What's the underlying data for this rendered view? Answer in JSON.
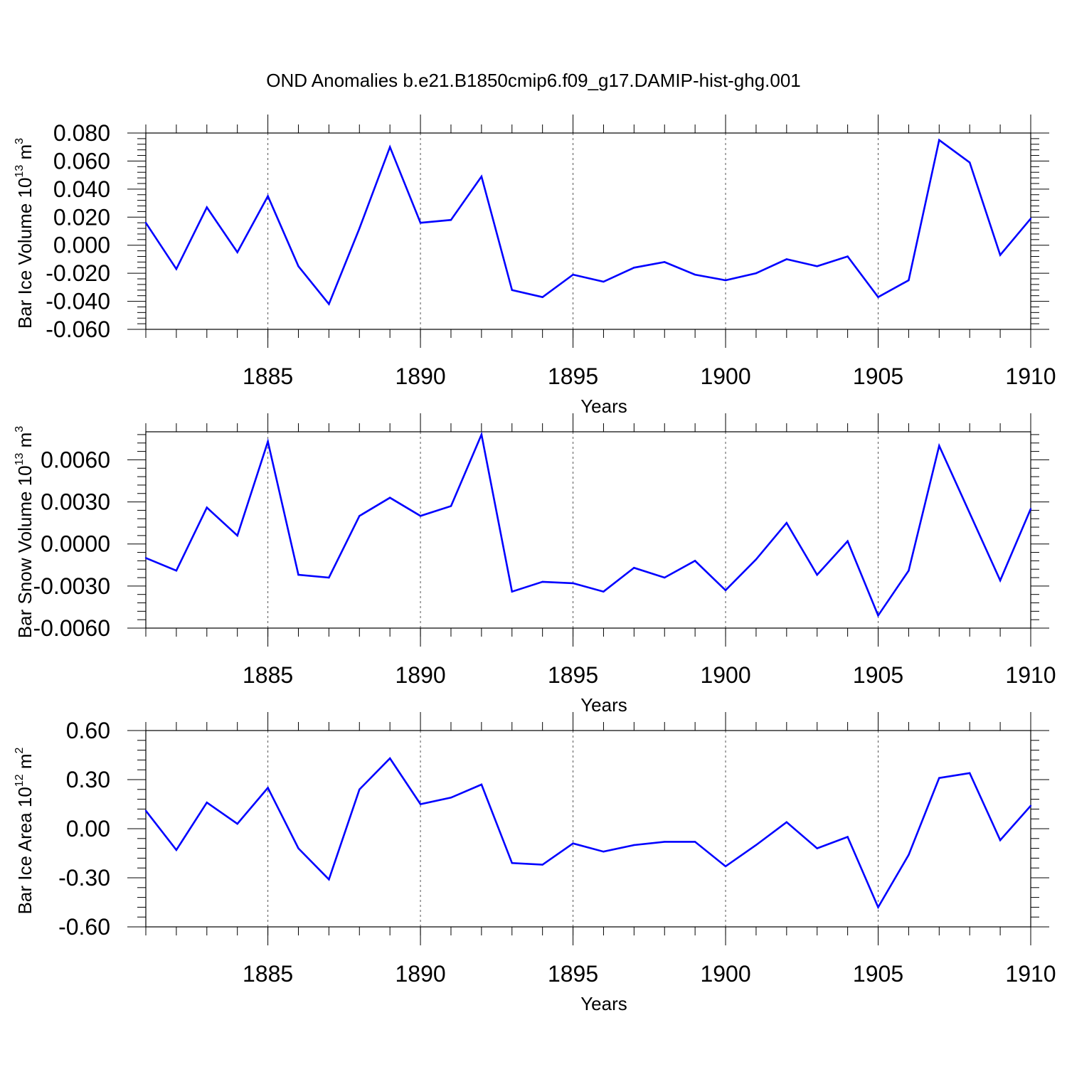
{
  "title": "OND Anomalies b.e21.B1850cmip6.f09_g17.DAMIP-hist-ghg.001",
  "line_color": "#0000ff",
  "chart_data": [
    {
      "type": "line",
      "xlabel": "Years",
      "ylabel": {
        "text": "Bar Ice Volume 10",
        "sup": "13",
        "unit": " m",
        "unit_sup": "3"
      },
      "xlim": [
        1881,
        1910
      ],
      "ylim": [
        -0.06,
        0.08
      ],
      "xticks": [
        1885,
        1890,
        1895,
        1900,
        1905,
        1910
      ],
      "yticks": [
        -0.06,
        -0.04,
        -0.02,
        0.0,
        0.02,
        0.04,
        0.06,
        0.08
      ],
      "ytick_labels": [
        "-0.060",
        "-0.040",
        "-0.020",
        "0.000",
        "0.020",
        "0.040",
        "0.060",
        "0.080"
      ],
      "grid": "vertical dashed at major x ticks",
      "x": [
        1881,
        1882,
        1883,
        1884,
        1885,
        1886,
        1887,
        1888,
        1889,
        1890,
        1891,
        1892,
        1893,
        1894,
        1895,
        1896,
        1897,
        1898,
        1899,
        1900,
        1901,
        1902,
        1903,
        1904,
        1905,
        1906,
        1907,
        1908,
        1909,
        1910
      ],
      "y": [
        0.016,
        -0.017,
        0.027,
        -0.005,
        0.035,
        -0.015,
        -0.042,
        0.012,
        0.07,
        0.016,
        0.018,
        0.049,
        -0.032,
        -0.037,
        -0.021,
        -0.026,
        -0.016,
        -0.012,
        -0.021,
        -0.025,
        -0.02,
        -0.01,
        -0.015,
        -0.008,
        -0.037,
        -0.025,
        0.075,
        0.059,
        -0.007,
        0.019
      ]
    },
    {
      "type": "line",
      "xlabel": "Years",
      "ylabel": {
        "text": "Bar Snow Volume 10",
        "sup": "13",
        "unit": " m",
        "unit_sup": "3"
      },
      "xlim": [
        1881,
        1910
      ],
      "ylim": [
        -0.006,
        0.008
      ],
      "xticks": [
        1885,
        1890,
        1895,
        1900,
        1905,
        1910
      ],
      "yticks": [
        -0.006,
        -0.003,
        0.0,
        0.003,
        0.006
      ],
      "ytick_labels": [
        "-0.0060",
        "-0.0030",
        "0.0000",
        "0.0030",
        "0.0060"
      ],
      "grid": "vertical dashed at major x ticks",
      "x": [
        1881,
        1882,
        1883,
        1884,
        1885,
        1886,
        1887,
        1888,
        1889,
        1890,
        1891,
        1892,
        1893,
        1894,
        1895,
        1896,
        1897,
        1898,
        1899,
        1900,
        1901,
        1902,
        1903,
        1904,
        1905,
        1906,
        1907,
        1908,
        1909,
        1910
      ],
      "y": [
        -0.001,
        -0.0019,
        0.0026,
        0.0006,
        0.0073,
        -0.0022,
        -0.0024,
        0.002,
        0.0033,
        0.002,
        0.0027,
        0.0078,
        -0.0034,
        -0.0027,
        -0.0028,
        -0.0034,
        -0.0017,
        -0.0024,
        -0.0012,
        -0.0033,
        -0.0011,
        0.0015,
        -0.0022,
        0.0002,
        -0.0051,
        -0.0019,
        0.007,
        0.0022,
        -0.0026,
        0.0025
      ]
    },
    {
      "type": "line",
      "xlabel": "Years",
      "ylabel": {
        "text": "Bar Ice Area 10",
        "sup": "12",
        "unit": " m",
        "unit_sup": "2"
      },
      "xlim": [
        1881,
        1910
      ],
      "ylim": [
        -0.6,
        0.6
      ],
      "xticks": [
        1885,
        1890,
        1895,
        1900,
        1905,
        1910
      ],
      "yticks": [
        -0.6,
        -0.3,
        0.0,
        0.3,
        0.6
      ],
      "ytick_labels": [
        "-0.60",
        "-0.30",
        "0.00",
        "0.30",
        "0.60"
      ],
      "grid": "vertical dashed at major x ticks",
      "x": [
        1881,
        1882,
        1883,
        1884,
        1885,
        1886,
        1887,
        1888,
        1889,
        1890,
        1891,
        1892,
        1893,
        1894,
        1895,
        1896,
        1897,
        1898,
        1899,
        1900,
        1901,
        1902,
        1903,
        1904,
        1905,
        1906,
        1907,
        1908,
        1909,
        1910
      ],
      "y": [
        0.11,
        -0.13,
        0.16,
        0.03,
        0.25,
        -0.12,
        -0.31,
        0.24,
        0.43,
        0.15,
        0.19,
        0.27,
        -0.21,
        -0.22,
        -0.09,
        -0.14,
        -0.1,
        -0.08,
        -0.08,
        -0.23,
        -0.1,
        0.04,
        -0.12,
        -0.05,
        -0.48,
        -0.16,
        0.31,
        0.34,
        -0.07,
        0.14
      ]
    }
  ]
}
